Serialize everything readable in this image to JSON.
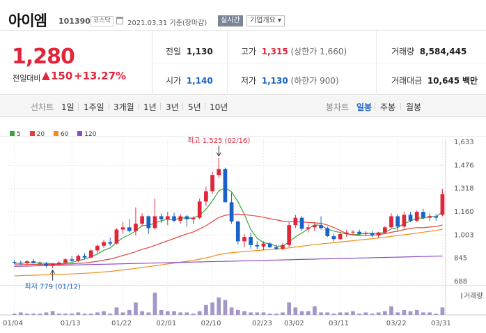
{
  "header": {
    "stock_name": "아이엠",
    "stock_code": "101390",
    "market": "코스닥",
    "date": "2021.03.31 기준(장마감)",
    "realtime_label": "실시간",
    "company_label": "기업개요 ▾"
  },
  "quote": {
    "price": "1,280",
    "change_label": "전일대비",
    "change": "150",
    "change_pct": "+13.27%",
    "prev_close_label": "전일",
    "prev_close": "1,130",
    "high_label": "고가",
    "high": "1,315",
    "upper_limit": "(상한가 1,660)",
    "volume_label": "거래량",
    "volume": "8,584,445",
    "open_label": "시가",
    "open": "1,140",
    "low_label": "저가",
    "low": "1,130",
    "lower_limit": "(하한가 900)",
    "amount_label": "거래대금",
    "amount": "10,645",
    "amount_unit": "백만"
  },
  "tabs": {
    "line_label": "선차트",
    "line_periods": [
      "1일",
      "1주일",
      "3개월",
      "1년",
      "3년",
      "5년",
      "10년"
    ],
    "candle_label": "봉차트",
    "candle_periods": [
      "일봉",
      "주봉",
      "월봉"
    ],
    "active_candle": "일봉"
  },
  "colors": {
    "up": "#e0263b",
    "down": "#1a62c8",
    "ma5": "#3aa33a",
    "ma20": "#e0403b",
    "ma60": "#f08c1a",
    "ma120": "#8a4fc4",
    "volume": "#a596c9"
  },
  "chart_data": {
    "type": "candlestick",
    "legend": [
      "5",
      "20",
      "60",
      "120"
    ],
    "y_ticks": [
      "1,633",
      "1,476",
      "1,318",
      "1,160",
      "1,003",
      "845",
      "688"
    ],
    "x_ticks": [
      "01/04",
      "01/13",
      "01/22",
      "02/01",
      "02/10",
      "02/23",
      "03/02",
      "03/11",
      "03/22",
      "03/31"
    ],
    "volume_label": "거래량",
    "annotation_high": "최고 1,525 (02/16)",
    "annotation_low": "최저 779 (01/12)",
    "ylim": [
      688,
      1633
    ],
    "ohlc": [
      [
        820,
        835,
        805,
        815
      ],
      [
        815,
        830,
        800,
        812
      ],
      [
        812,
        830,
        800,
        825
      ],
      [
        825,
        840,
        810,
        812
      ],
      [
        812,
        826,
        798,
        808
      ],
      [
        808,
        820,
        785,
        795
      ],
      [
        795,
        812,
        779,
        805
      ],
      [
        805,
        825,
        795,
        816
      ],
      [
        816,
        845,
        808,
        838
      ],
      [
        838,
        860,
        820,
        828
      ],
      [
        828,
        870,
        820,
        862
      ],
      [
        862,
        880,
        840,
        850
      ],
      [
        850,
        905,
        845,
        898
      ],
      [
        898,
        940,
        880,
        930
      ],
      [
        930,
        970,
        915,
        955
      ],
      [
        955,
        985,
        930,
        945
      ],
      [
        945,
        1050,
        940,
        1040
      ],
      [
        1040,
        1090,
        1010,
        1055
      ],
      [
        1055,
        1110,
        1020,
        1030
      ],
      [
        1030,
        1190,
        1000,
        1080
      ],
      [
        1080,
        1150,
        1060,
        1130
      ],
      [
        1130,
        1135,
        1010,
        1050
      ],
      [
        1050,
        1250,
        1040,
        1130
      ],
      [
        1130,
        1150,
        1085,
        1110
      ],
      [
        1110,
        1160,
        1070,
        1130
      ],
      [
        1130,
        1155,
        1090,
        1100
      ],
      [
        1100,
        1145,
        1080,
        1130
      ],
      [
        1130,
        1140,
        1060,
        1110
      ],
      [
        1110,
        1130,
        1080,
        1120
      ],
      [
        1120,
        1250,
        1110,
        1230
      ],
      [
        1230,
        1330,
        1200,
        1300
      ],
      [
        1300,
        1430,
        1280,
        1410
      ],
      [
        1410,
        1525,
        1390,
        1450
      ],
      [
        1450,
        1460,
        1230,
        1225
      ],
      [
        1225,
        1290,
        1080,
        1095
      ],
      [
        1095,
        1100,
        940,
        960
      ],
      [
        960,
        1010,
        920,
        990
      ],
      [
        990,
        1020,
        910,
        935
      ],
      [
        935,
        960,
        905,
        925
      ],
      [
        925,
        960,
        900,
        945
      ],
      [
        945,
        955,
        915,
        920
      ],
      [
        920,
        940,
        900,
        910
      ],
      [
        910,
        950,
        900,
        935
      ],
      [
        935,
        1090,
        920,
        1070
      ],
      [
        1070,
        1140,
        1050,
        1120
      ],
      [
        1120,
        1130,
        1030,
        1045
      ],
      [
        1045,
        1080,
        1020,
        1055
      ],
      [
        1055,
        1090,
        1030,
        1070
      ],
      [
        1070,
        1130,
        1040,
        1050
      ],
      [
        1050,
        1060,
        990,
        995
      ],
      [
        995,
        1010,
        960,
        975
      ],
      [
        975,
        1020,
        970,
        1010
      ],
      [
        1010,
        1040,
        990,
        1020
      ],
      [
        1020,
        1035,
        1000,
        1025
      ],
      [
        1025,
        1040,
        1000,
        1010
      ],
      [
        1010,
        1030,
        995,
        1015
      ],
      [
        1015,
        1030,
        990,
        1000
      ],
      [
        1000,
        1025,
        985,
        1020
      ],
      [
        1020,
        1065,
        1010,
        1055
      ],
      [
        1055,
        1150,
        1050,
        1130
      ],
      [
        1130,
        1145,
        1030,
        1060
      ],
      [
        1060,
        1160,
        1050,
        1140
      ],
      [
        1140,
        1160,
        1090,
        1100
      ],
      [
        1100,
        1170,
        1090,
        1160
      ],
      [
        1160,
        1180,
        1110,
        1120
      ],
      [
        1120,
        1150,
        1100,
        1130
      ],
      [
        1130,
        1145,
        1100,
        1120
      ],
      [
        1140,
        1315,
        1130,
        1280
      ]
    ],
    "volume": [
      1,
      2,
      1,
      1,
      1,
      2,
      3,
      1,
      1,
      1,
      2,
      1,
      1,
      2,
      3,
      1,
      6,
      2,
      4,
      10,
      3,
      2,
      18,
      4,
      3,
      3,
      2,
      2,
      1,
      3,
      8,
      10,
      14,
      12,
      6,
      4,
      3,
      2,
      2,
      2,
      1,
      1,
      2,
      10,
      6,
      3,
      3,
      7,
      2,
      2,
      1,
      2,
      2,
      3,
      1,
      2,
      1,
      2,
      3,
      7,
      2,
      4,
      3,
      4,
      2,
      2,
      1,
      6
    ]
  }
}
